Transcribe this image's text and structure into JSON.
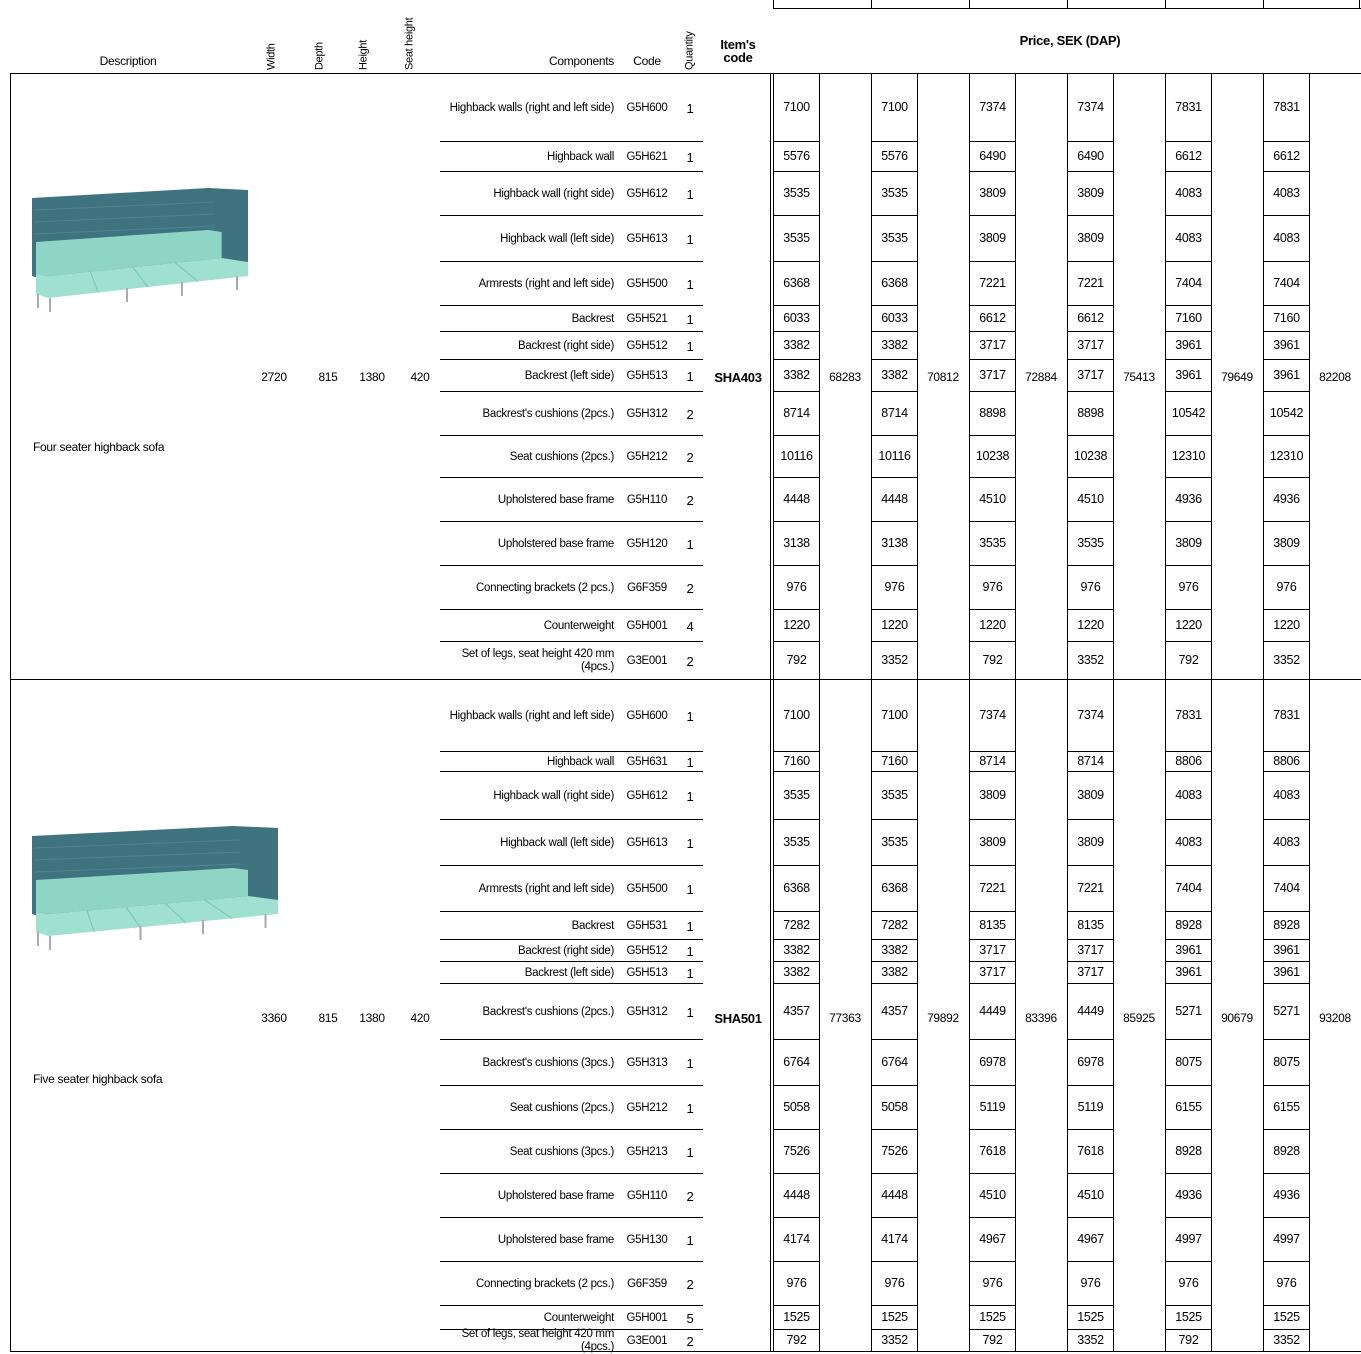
{
  "header": {
    "description": "Description",
    "width": "Width",
    "depth": "Depth",
    "height": "Height",
    "seat_height": "Seat height",
    "components": "Components",
    "code": "Code",
    "quantity": "Quantity",
    "item_code": "Item's code",
    "price": "Price, SEK (DAP)"
  },
  "products": [
    {
      "description": "Four seater highback sofa",
      "width": 2720,
      "depth": 815,
      "height": 1380,
      "seat_height": 420,
      "item_code": "SHA403",
      "totals": [
        68283,
        70812,
        72884,
        75413,
        79649,
        82208
      ],
      "components": [
        {
          "name": "Highback walls (right and left side)",
          "code": "G5H600",
          "quantity": 1,
          "prices": [
            7100,
            7100,
            7374,
            7374,
            7831,
            7831
          ]
        },
        {
          "name": "Highback wall",
          "code": "G5H621",
          "quantity": 1,
          "prices": [
            5576,
            5576,
            6490,
            6490,
            6612,
            6612
          ]
        },
        {
          "name": "Highback wall (right side)",
          "code": "G5H612",
          "quantity": 1,
          "prices": [
            3535,
            3535,
            3809,
            3809,
            4083,
            4083
          ]
        },
        {
          "name": "Highback wall (left side)",
          "code": "G5H613",
          "quantity": 1,
          "prices": [
            3535,
            3535,
            3809,
            3809,
            4083,
            4083
          ]
        },
        {
          "name": "Armrests (right and left side)",
          "code": "G5H500",
          "quantity": 1,
          "prices": [
            6368,
            6368,
            7221,
            7221,
            7404,
            7404
          ]
        },
        {
          "name": "Backrest",
          "code": "G5H521",
          "quantity": 1,
          "prices": [
            6033,
            6033,
            6612,
            6612,
            7160,
            7160
          ]
        },
        {
          "name": "Backrest (right side)",
          "code": "G5H512",
          "quantity": 1,
          "prices": [
            3382,
            3382,
            3717,
            3717,
            3961,
            3961
          ]
        },
        {
          "name": "Backrest (left side)",
          "code": "G5H513",
          "quantity": 1,
          "prices": [
            3382,
            3382,
            3717,
            3717,
            3961,
            3961
          ]
        },
        {
          "name": "Backrest's cushions (2pcs.)",
          "code": "G5H312",
          "quantity": 2,
          "prices": [
            8714,
            8714,
            8898,
            8898,
            10542,
            10542
          ]
        },
        {
          "name": "Seat cushions (2pcs.)",
          "code": "G5H212",
          "quantity": 2,
          "prices": [
            10116,
            10116,
            10238,
            10238,
            12310,
            12310
          ]
        },
        {
          "name": "Upholstered base frame",
          "code": "G5H110",
          "quantity": 2,
          "prices": [
            4448,
            4448,
            4510,
            4510,
            4936,
            4936
          ]
        },
        {
          "name": "Upholstered base frame",
          "code": "G5H120",
          "quantity": 1,
          "prices": [
            3138,
            3138,
            3535,
            3535,
            3809,
            3809
          ]
        },
        {
          "name": "Connecting brackets (2 pcs.)",
          "code": "G6F359",
          "quantity": 2,
          "prices": [
            976,
            976,
            976,
            976,
            976,
            976
          ]
        },
        {
          "name": "Counterweight",
          "code": "G5H001",
          "quantity": 4,
          "prices": [
            1220,
            1220,
            1220,
            1220,
            1220,
            1220
          ]
        },
        {
          "name": "Set of legs, seat height 420 mm (4pcs.)",
          "code": "G3E001",
          "quantity": 2,
          "prices": [
            792,
            3352,
            792,
            3352,
            792,
            3352
          ]
        }
      ]
    },
    {
      "description": "Five seater highback sofa",
      "width": 3360,
      "depth": 815,
      "height": 1380,
      "seat_height": 420,
      "item_code": "SHA501",
      "totals": [
        77363,
        79892,
        83396,
        85925,
        90679,
        93208
      ],
      "components": [
        {
          "name": "Highback walls (right and left side)",
          "code": "G5H600",
          "quantity": 1,
          "prices": [
            7100,
            7100,
            7374,
            7374,
            7831,
            7831
          ]
        },
        {
          "name": "Highback wall",
          "code": "G5H631",
          "quantity": 1,
          "prices": [
            7160,
            7160,
            8714,
            8714,
            8806,
            8806
          ]
        },
        {
          "name": "Highback wall (right side)",
          "code": "G5H612",
          "quantity": 1,
          "prices": [
            3535,
            3535,
            3809,
            3809,
            4083,
            4083
          ]
        },
        {
          "name": "Highback wall (left side)",
          "code": "G5H613",
          "quantity": 1,
          "prices": [
            3535,
            3535,
            3809,
            3809,
            4083,
            4083
          ]
        },
        {
          "name": "Armrests (right and left side)",
          "code": "G5H500",
          "quantity": 1,
          "prices": [
            6368,
            6368,
            7221,
            7221,
            7404,
            7404
          ]
        },
        {
          "name": "Backrest",
          "code": "G5H531",
          "quantity": 1,
          "prices": [
            7282,
            7282,
            8135,
            8135,
            8928,
            8928
          ]
        },
        {
          "name": "Backrest (right side)",
          "code": "G5H512",
          "quantity": 1,
          "prices": [
            3382,
            3382,
            3717,
            3717,
            3961,
            3961
          ]
        },
        {
          "name": "Backrest (left side)",
          "code": "G5H513",
          "quantity": 1,
          "prices": [
            3382,
            3382,
            3717,
            3717,
            3961,
            3961
          ]
        },
        {
          "name": "Backrest's cushions (2pcs.)",
          "code": "G5H312",
          "quantity": 1,
          "prices": [
            4357,
            4357,
            4449,
            4449,
            5271,
            5271
          ]
        },
        {
          "name": "Backrest's cushions (3pcs.)",
          "code": "G5H313",
          "quantity": 1,
          "prices": [
            6764,
            6764,
            6978,
            6978,
            8075,
            8075
          ]
        },
        {
          "name": "Seat cushions (2pcs.)",
          "code": "G5H212",
          "quantity": 1,
          "prices": [
            5058,
            5058,
            5119,
            5119,
            6155,
            6155
          ]
        },
        {
          "name": "Seat cushions (3pcs.)",
          "code": "G5H213",
          "quantity": 1,
          "prices": [
            7526,
            7526,
            7618,
            7618,
            8928,
            8928
          ]
        },
        {
          "name": "Upholstered base frame",
          "code": "G5H110",
          "quantity": 2,
          "prices": [
            4448,
            4448,
            4510,
            4510,
            4936,
            4936
          ]
        },
        {
          "name": "Upholstered base frame",
          "code": "G5H130",
          "quantity": 1,
          "prices": [
            4174,
            4174,
            4967,
            4967,
            4997,
            4997
          ]
        },
        {
          "name": "Connecting brackets (2 pcs.)",
          "code": "G6F359",
          "quantity": 2,
          "prices": [
            976,
            976,
            976,
            976,
            976,
            976
          ]
        },
        {
          "name": "Counterweight",
          "code": "G5H001",
          "quantity": 5,
          "prices": [
            1525,
            1525,
            1525,
            1525,
            1525,
            1525
          ]
        },
        {
          "name": "Set of legs, seat height 420 mm (4pcs.)",
          "code": "G3E001",
          "quantity": 2,
          "prices": [
            792,
            3352,
            792,
            3352,
            792,
            3352
          ]
        }
      ]
    }
  ]
}
